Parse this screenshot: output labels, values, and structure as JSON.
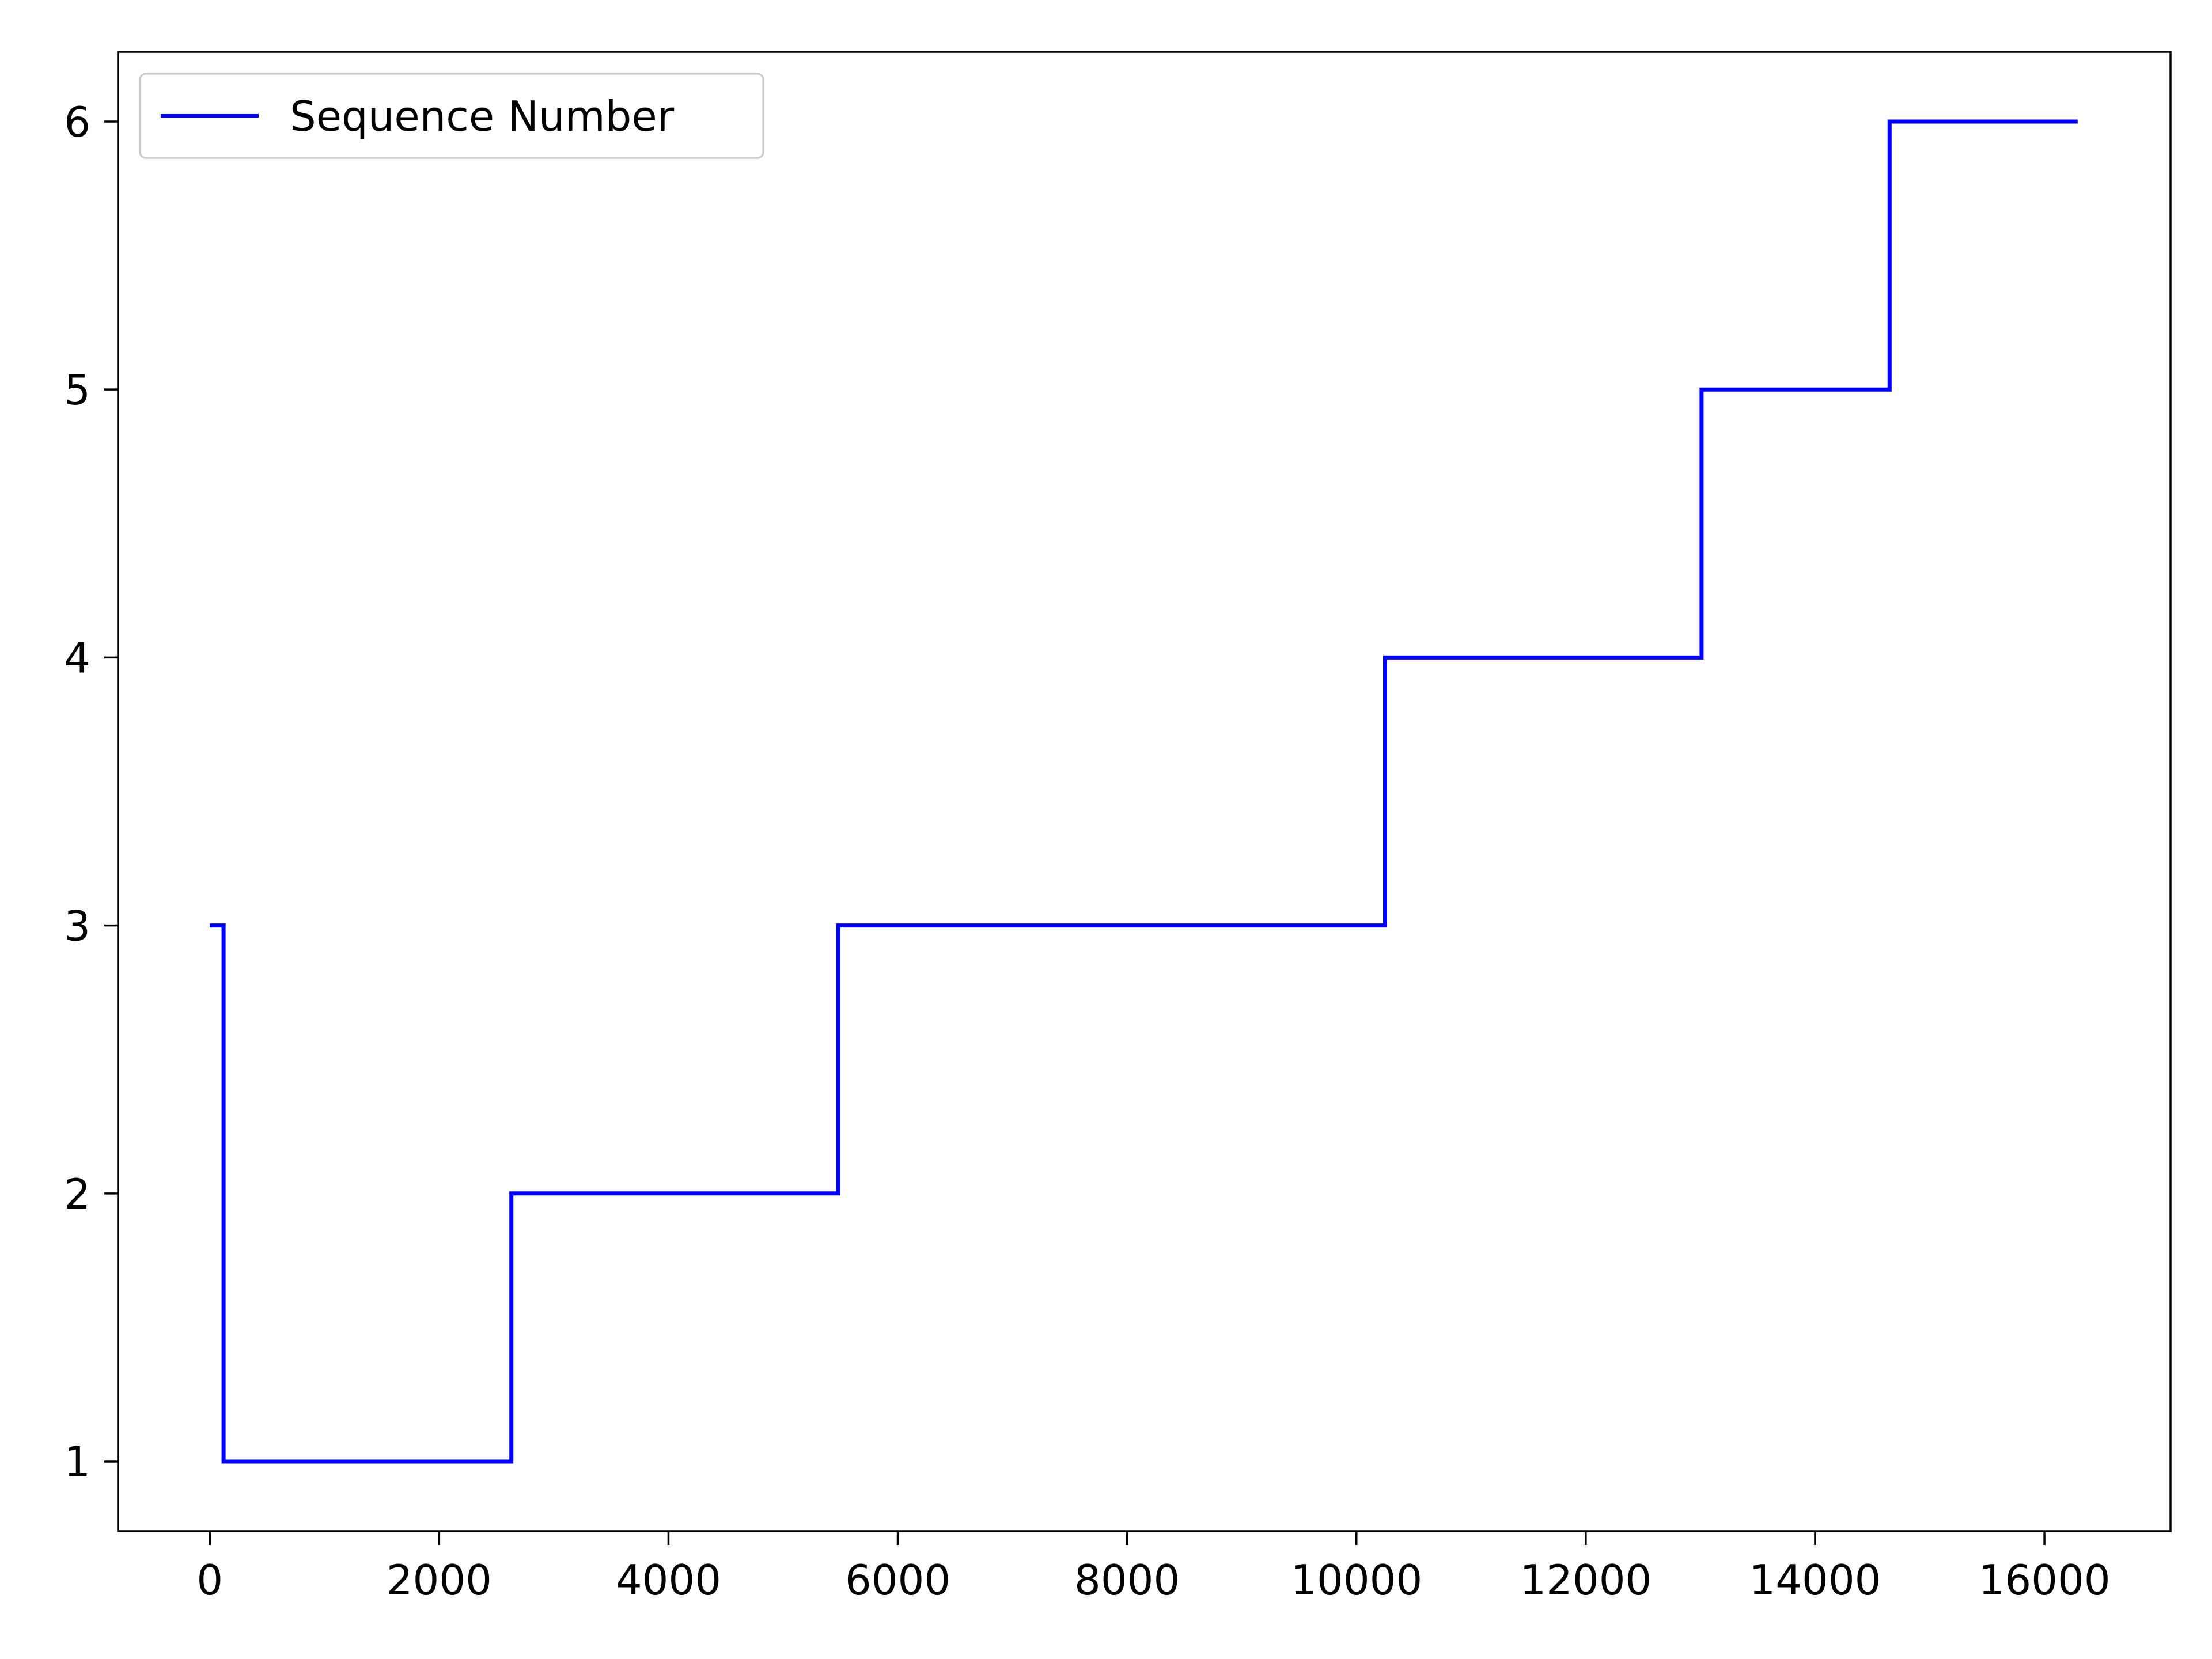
{
  "chart_data": {
    "type": "line",
    "title": "",
    "xlabel": "",
    "ylabel": "",
    "xlim": [
      -800,
      17100
    ],
    "ylim": [
      0.74,
      6.26
    ],
    "x_ticks": [
      0,
      2000,
      4000,
      6000,
      8000,
      10000,
      12000,
      14000,
      16000
    ],
    "y_ticks": [
      1,
      2,
      3,
      4,
      5,
      6
    ],
    "x_tick_labels": [
      "0",
      "2000",
      "4000",
      "6000",
      "8000",
      "10000",
      "12000",
      "14000",
      "16000"
    ],
    "y_tick_labels": [
      "1",
      "2",
      "3",
      "4",
      "5",
      "6"
    ],
    "grid": false,
    "legend_position": "upper-left",
    "series": [
      {
        "name": "Sequence Number",
        "color": "#0000ff",
        "step": "post",
        "x": [
          0,
          120,
          120,
          2630,
          2630,
          5480,
          5480,
          10250,
          10250,
          13010,
          13010,
          14650,
          14650,
          16290
        ],
        "y": [
          3,
          3,
          1,
          1,
          2,
          2,
          3,
          3,
          4,
          4,
          5,
          5,
          6,
          6
        ]
      }
    ]
  }
}
